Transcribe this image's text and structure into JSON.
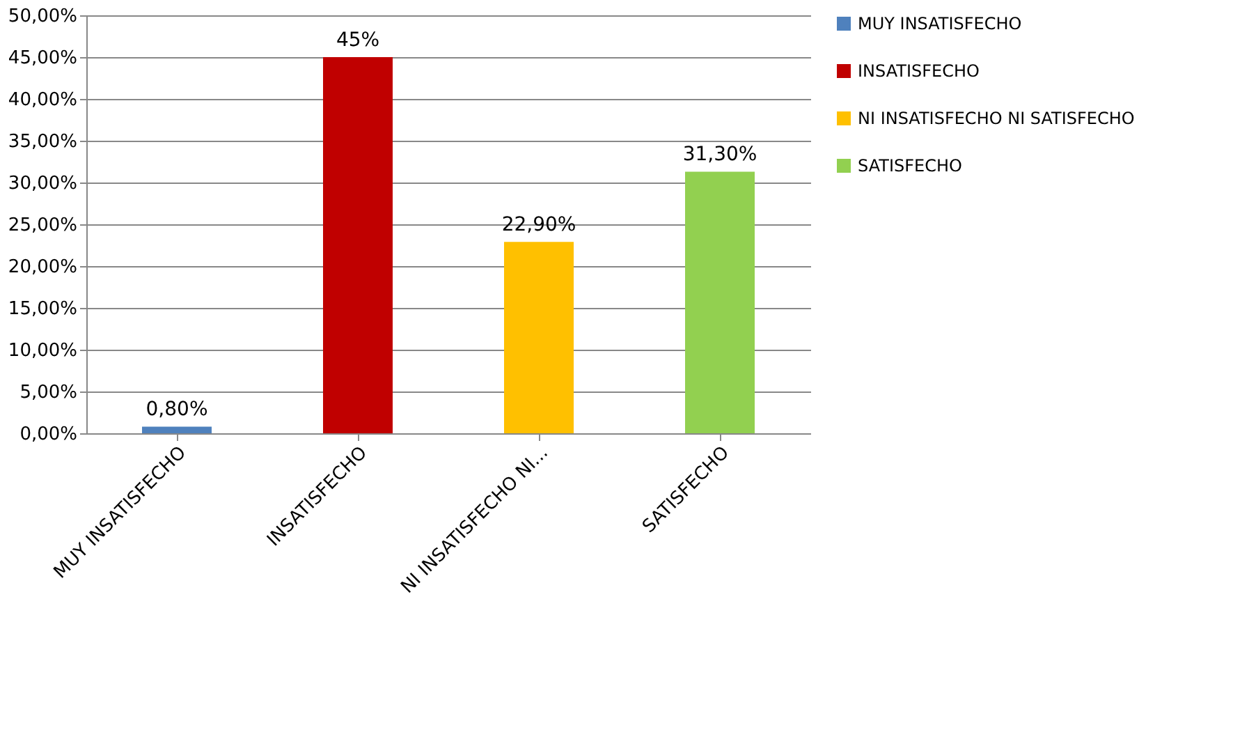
{
  "chart_data": {
    "type": "bar",
    "categories": [
      "MUY INSATISFECHO",
      "INSATISFECHO",
      "NI INSATISFECHO  NI...",
      "SATISFECHO"
    ],
    "series": [
      {
        "name": "MUY INSATISFECHO",
        "color": "#4f81bd",
        "values": [
          0.8,
          null,
          null,
          null
        ],
        "value_labels": [
          "0,80%",
          null,
          null,
          null
        ]
      },
      {
        "name": "INSATISFECHO",
        "color": "#c00000",
        "values": [
          null,
          45,
          null,
          null
        ],
        "value_labels": [
          null,
          "45%",
          null,
          null
        ]
      },
      {
        "name": "NI INSATISFECHO  NI SATISFECHO",
        "color": "#ffc000",
        "values": [
          null,
          null,
          22.9,
          null
        ],
        "value_labels": [
          null,
          null,
          "22,90%",
          null
        ]
      },
      {
        "name": "SATISFECHO",
        "color": "#92d050",
        "values": [
          null,
          null,
          null,
          31.3
        ],
        "value_labels": [
          null,
          null,
          null,
          "31,30%"
        ]
      }
    ],
    "ylim": [
      0,
      50
    ],
    "yticks": [
      {
        "value": 0,
        "label": "0,00%"
      },
      {
        "value": 5,
        "label": "5,00%"
      },
      {
        "value": 10,
        "label": "10,00%"
      },
      {
        "value": 15,
        "label": "15,00%"
      },
      {
        "value": 20,
        "label": "20,00%"
      },
      {
        "value": 25,
        "label": "25,00%"
      },
      {
        "value": 30,
        "label": "30,00%"
      },
      {
        "value": 35,
        "label": "35,00%"
      },
      {
        "value": 40,
        "label": "40,00%"
      },
      {
        "value": 45,
        "label": "45,00%"
      },
      {
        "value": 50,
        "label": "50,00%"
      }
    ],
    "grid": "y",
    "legend": "right"
  }
}
